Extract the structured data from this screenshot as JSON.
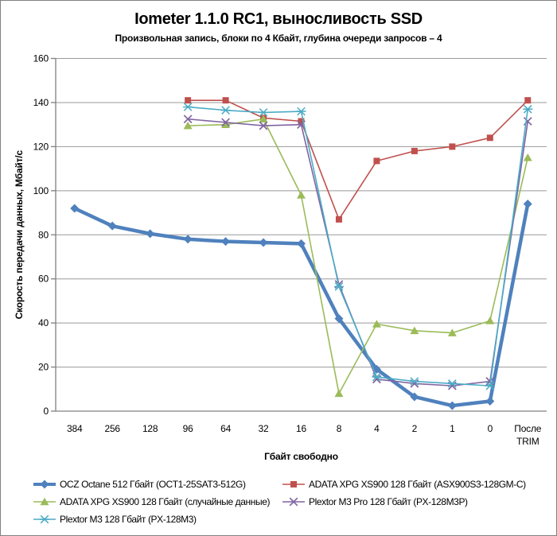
{
  "window": {
    "background": "#ffffff",
    "border_color": "#808080"
  },
  "chart_data": {
    "type": "line",
    "title": "Iometer 1.1.0 RC1, выносливость SSD",
    "subtitle": "Произвольная  запись, блоки по 4 Кбайт, глубина очереди запросов – 4",
    "xlabel": "Гбайт свободно",
    "ylabel": "Скорость  передачи данных, Мбайт/с",
    "ylim": [
      0,
      160
    ],
    "y_ticks": [
      0,
      20,
      40,
      60,
      80,
      100,
      120,
      140,
      160
    ],
    "grid": true,
    "legend_position": "bottom",
    "axis_color": "#808080",
    "gridline_color": "#999999",
    "categories": [
      "384",
      "256",
      "128",
      "96",
      "64",
      "32",
      "16",
      "8",
      "4",
      "2",
      "1",
      "0",
      "После TRIM"
    ],
    "series": [
      {
        "name": "OCZ Octane 512 Гбайт (OCT1-25SAT3-512G)",
        "color": "#4F81BD",
        "marker": "diamond",
        "line_width": 4.5,
        "values": [
          92,
          84,
          80.5,
          78,
          77,
          76.5,
          76,
          42,
          19,
          6.5,
          2.5,
          4.5,
          94
        ]
      },
      {
        "name": "ADATA  XPG XS900 128 Гбайт (ASX900S3-128GM-C)",
        "color": "#C0504D",
        "marker": "square",
        "line_width": 1.6,
        "values": [
          null,
          null,
          null,
          141,
          141,
          133,
          131.5,
          87,
          113.5,
          118,
          120,
          124,
          141
        ]
      },
      {
        "name": "ADATA  XPG XS900 128 Гбайт (случайные данные)",
        "color": "#9BBB59",
        "marker": "triangle",
        "line_width": 1.6,
        "values": [
          null,
          null,
          null,
          129.5,
          130,
          132.5,
          98,
          8,
          39.5,
          36.5,
          35.5,
          41,
          115
        ]
      },
      {
        "name": "Plextor M3 Pro 128 Гбайт (PX-128M3P)",
        "color": "#8064A2",
        "marker": "x",
        "line_width": 1.6,
        "values": [
          null,
          null,
          null,
          132.5,
          131,
          129.5,
          130,
          57.5,
          14.5,
          12.5,
          11.5,
          13.5,
          131.5
        ]
      },
      {
        "name": "Plextor M3 128 Гбайт (PX-128M3)",
        "color": "#4BACC6",
        "marker": "asterisk",
        "line_width": 1.6,
        "values": [
          null,
          null,
          null,
          138,
          136.5,
          135.5,
          136,
          56.5,
          15.5,
          13.5,
          12.5,
          11.5,
          137
        ]
      }
    ]
  }
}
